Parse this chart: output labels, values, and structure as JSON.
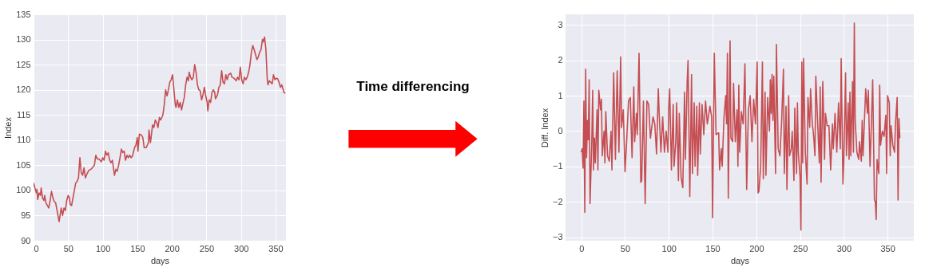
{
  "chart_data": [
    {
      "type": "line",
      "xlabel": "days",
      "ylabel": "Index",
      "xlim": [
        0,
        365
      ],
      "xticks": [
        0,
        50,
        100,
        150,
        200,
        250,
        300,
        350
      ],
      "ylim": [
        90,
        135
      ],
      "yticks": [
        90,
        95,
        100,
        105,
        110,
        115,
        120,
        125,
        130,
        135
      ],
      "grid": true,
      "marker": "none",
      "line_style": "solid",
      "annotations": [
        "Time differencing"
      ],
      "series": [
        {
          "color": "#c44e52",
          "x": [
            0,
            2,
            4,
            5,
            6,
            8,
            10,
            11,
            13,
            15,
            16,
            18,
            20,
            22,
            24,
            26,
            28,
            30,
            32,
            34,
            36,
            37,
            40,
            42,
            44,
            46,
            48,
            50,
            52,
            53,
            55,
            57,
            59,
            61,
            63,
            65,
            67,
            69,
            71,
            73,
            75,
            77,
            80,
            83,
            85,
            88,
            90,
            92,
            95,
            98,
            100,
            102,
            104,
            106,
            108,
            110,
            112,
            114,
            116,
            117,
            119,
            121,
            123,
            125,
            127,
            129,
            131,
            133,
            135,
            137,
            139,
            141,
            143,
            146,
            148,
            150,
            151,
            153,
            156,
            158,
            160,
            163,
            166,
            167,
            169,
            170,
            172,
            174,
            176,
            178,
            180,
            182,
            184,
            187,
            189,
            191,
            193,
            195,
            197,
            199,
            201,
            203,
            205,
            206,
            208,
            210,
            212,
            214,
            216,
            218,
            220,
            222,
            224,
            225,
            227,
            229,
            231,
            233,
            235,
            237,
            239,
            241,
            243,
            245,
            247,
            249,
            251,
            252,
            254,
            256,
            258,
            260,
            262,
            263,
            266,
            268,
            270,
            272,
            274,
            276,
            278,
            280,
            282,
            285,
            287,
            290,
            293,
            295,
            297,
            299,
            301,
            303,
            305,
            307,
            309,
            311,
            313,
            315,
            317,
            319,
            321,
            323,
            325,
            327,
            329,
            331,
            332,
            334,
            336,
            338,
            339,
            341,
            343,
            345,
            347,
            349,
            351,
            353,
            355,
            357,
            359,
            362,
            364
          ],
          "values": [
            101.5,
            100.5,
            99.5,
            100.2,
            98.2,
            99.5,
            99,
            100.5,
            98.5,
            98,
            99,
            97.5,
            97,
            96.5,
            98,
            99.8,
            98.5,
            97.8,
            97.5,
            96,
            94.5,
            93.8,
            96.5,
            95,
            96.5,
            96,
            98,
            99,
            98.5,
            97.2,
            97,
            98.5,
            100,
            101.5,
            101.8,
            102.5,
            106.5,
            103.5,
            103,
            104.5,
            102.5,
            103.2,
            104,
            104.2,
            104.5,
            105,
            107,
            106.3,
            106.2,
            105.7,
            106.5,
            106,
            107.8,
            107,
            107.5,
            106,
            105.5,
            106,
            104,
            103,
            104.2,
            103.8,
            105,
            106.5,
            108.2,
            107.5,
            107.8,
            106,
            107,
            106.5,
            107,
            106.5,
            106.8,
            108.5,
            109,
            110.5,
            107.8,
            111.2,
            111,
            110.5,
            108.5,
            108.5,
            109.5,
            112,
            109.5,
            110.5,
            113,
            112.5,
            114,
            113.5,
            112.5,
            114.5,
            114,
            115,
            117,
            120,
            118.8,
            120,
            121.5,
            122,
            123,
            120,
            117,
            116.5,
            118,
            116.5,
            117.5,
            116,
            117.3,
            118.5,
            121,
            122.5,
            121.8,
            123.5,
            122.5,
            122,
            122.5,
            125,
            123.5,
            121,
            120,
            119.8,
            118,
            119,
            120.5,
            118.8,
            117.5,
            115.8,
            118,
            117.5,
            119.5,
            120,
            119.5,
            118.2,
            119,
            120.5,
            121,
            123.8,
            121.5,
            121.2,
            123,
            122,
            123,
            123.3,
            122.5,
            122.3,
            121.8,
            122.5,
            122,
            124.5,
            122,
            121.2,
            122.5,
            122,
            122.5,
            123.5,
            125,
            127.5,
            128.8,
            128,
            127,
            126,
            126.5,
            127.5,
            128,
            130,
            129.5,
            130.5,
            128,
            122,
            121,
            121.8,
            121.5,
            121.2,
            123,
            122,
            122.3,
            122.2,
            121.5,
            120.5,
            121,
            119.5,
            119.3
          ]
        }
      ]
    },
    {
      "type": "line",
      "xlabel": "days",
      "ylabel": "Diff. Index",
      "xlim": [
        -18,
        380
      ],
      "xticks": [
        0,
        50,
        100,
        150,
        200,
        250,
        300,
        350
      ],
      "ylim": [
        -3.1,
        3.3
      ],
      "yticks": [
        -3,
        -2,
        -1,
        0,
        1,
        2,
        3
      ],
      "grid": true,
      "marker": "none",
      "line_style": "solid",
      "series": [
        {
          "color": "#c44e52",
          "x": [
            0,
            1,
            2,
            3,
            4,
            5,
            6,
            7,
            8,
            9,
            10,
            12,
            13,
            14,
            15,
            16,
            18,
            19,
            20,
            22,
            23,
            24,
            26,
            27,
            28,
            30,
            32,
            34,
            35,
            37,
            39,
            41,
            43,
            45,
            46,
            48,
            50,
            52,
            54,
            56,
            58,
            60,
            61,
            63,
            64,
            66,
            68,
            69,
            71,
            73,
            75,
            77,
            79,
            82,
            84,
            86,
            88,
            89,
            91,
            93,
            95,
            97,
            99,
            100,
            101,
            103,
            105,
            106,
            108,
            109,
            111,
            112,
            114,
            116,
            118,
            119,
            121,
            122,
            124,
            126,
            127,
            129,
            130,
            132,
            133,
            135,
            136,
            138,
            140,
            142,
            144,
            147,
            149,
            150,
            152,
            154,
            157,
            158,
            160,
            161,
            163,
            165,
            166,
            167,
            168,
            170,
            171,
            173,
            174,
            176,
            178,
            179,
            180,
            181,
            183,
            185,
            187,
            189,
            191,
            193,
            195,
            197,
            199,
            201,
            202,
            203,
            205,
            207,
            208,
            210,
            211,
            213,
            215,
            216,
            217,
            218,
            219,
            220,
            222,
            223,
            225,
            227,
            229,
            231,
            232,
            234,
            235,
            237,
            238,
            240,
            241,
            243,
            244,
            246,
            247,
            248,
            250,
            251,
            252,
            253,
            254,
            256,
            258,
            259,
            261,
            262,
            264,
            265,
            266,
            267,
            268,
            270,
            272,
            273,
            274,
            276,
            278,
            279,
            281,
            283,
            285,
            287,
            288,
            290,
            292,
            294,
            296,
            297,
            299,
            300,
            302,
            303,
            305,
            306,
            307,
            308,
            310,
            311,
            312,
            313,
            315,
            317,
            318,
            320,
            321,
            322,
            325,
            327,
            328,
            330,
            331,
            333,
            334,
            335,
            336,
            337,
            338,
            340,
            341,
            342,
            344,
            346,
            348,
            349,
            350,
            352,
            353,
            354,
            356,
            358,
            359,
            361,
            362,
            363,
            364
          ],
          "values": [
            -0.6,
            -0.5,
            -1.05,
            0.85,
            -2.3,
            1.75,
            -0.75,
            0.3,
            -0.25,
            1.45,
            -2.05,
            -0.3,
            1.15,
            -1.1,
            -0.2,
            -0.9,
            0.6,
            -1.1,
            1.15,
            0.6,
            0.9,
            -0.7,
            0.0,
            -0.9,
            0.55,
            -0.7,
            -0.85,
            0.0,
            -1.1,
            1.65,
            -0.8,
            1.7,
            -0.6,
            2.1,
            0.1,
            0.6,
            -1.15,
            -0.2,
            0.85,
            0.95,
            -0.75,
            1.25,
            -0.3,
            0.5,
            -0.1,
            2.2,
            -1.45,
            -1.4,
            0.85,
            -2.05,
            0.85,
            0.75,
            -0.2,
            0.4,
            0.2,
            -0.65,
            1.2,
            0.5,
            -0.6,
            0.4,
            -0.6,
            0.0,
            -0.6,
            0.7,
            1.2,
            -1.1,
            0.75,
            -1.0,
            -0.3,
            0.8,
            -1.4,
            0.5,
            -1.3,
            -1.6,
            1.1,
            -0.8,
            1.4,
            2.0,
            -1.85,
            1.6,
            -1.2,
            0.8,
            -1.0,
            0.7,
            -1.25,
            0.8,
            -0.65,
            0.75,
            -0.1,
            0.85,
            0.2,
            0.7,
            0.4,
            -2.45,
            2.2,
            -0.1,
            -0.05,
            -1.1,
            -0.5,
            -1.0,
            0.35,
            1.0,
            0.2,
            2.2,
            -1.9,
            2.55,
            -0.2,
            -0.3,
            1.35,
            -0.3,
            0.6,
            -1.0,
            1.3,
            -0.6,
            0.55,
            0.2,
            1.9,
            -1.65,
            0.6,
            1.0,
            -0.3,
            0.9,
            0.2,
            1.95,
            -1.75,
            -1.7,
            -1.0,
            1.95,
            -1.35,
            1.1,
            -1.25,
            0.95,
            0.0,
            1.45,
            0.5,
            1.6,
            0.3,
            1.55,
            -1.2,
            2.45,
            -0.5,
            -0.7,
            0.3,
            1.75,
            -1.2,
            0.7,
            -1.65,
            1.0,
            -0.7,
            -0.5,
            0.0,
            -1.4,
            0.65,
            -1.2,
            0.8,
            -0.6,
            -1.3,
            -2.8,
            1.95,
            -0.9,
            2.05,
            -0.6,
            -1.5,
            0.95,
            0.1,
            1.2,
            0.2,
            0.0,
            -0.3,
            -0.7,
            1.55,
            0.3,
            -0.9,
            1.25,
            -1.45,
            1.4,
            -0.8,
            0.5,
            0.15,
            0.15,
            -1.1,
            0.2,
            -0.5,
            0.5,
            -0.6,
            0.8,
            -0.5,
            2.05,
            -1.5,
            -0.8,
            1.65,
            -0.7,
            0.8,
            -0.8,
            1.1,
            -0.7,
            1.4,
            -0.6,
            3.05,
            0.3,
            -0.6,
            -0.8,
            -0.3,
            -0.85,
            0.3,
            -0.7,
            1.2,
            0.5,
            1.15,
            -1.0,
            -0.2,
            1.45,
            -0.3,
            -1.95,
            -2.0,
            -2.5,
            -0.8,
            -1.2,
            1.3,
            -0.4,
            0.0,
            -0.15,
            0.45,
            -1.2,
            1.0,
            0.8,
            -0.7,
            0.15,
            -0.4,
            -0.6,
            0.2,
            0.95,
            -1.95,
            0.35,
            -0.2
          ]
        }
      ]
    }
  ]
}
